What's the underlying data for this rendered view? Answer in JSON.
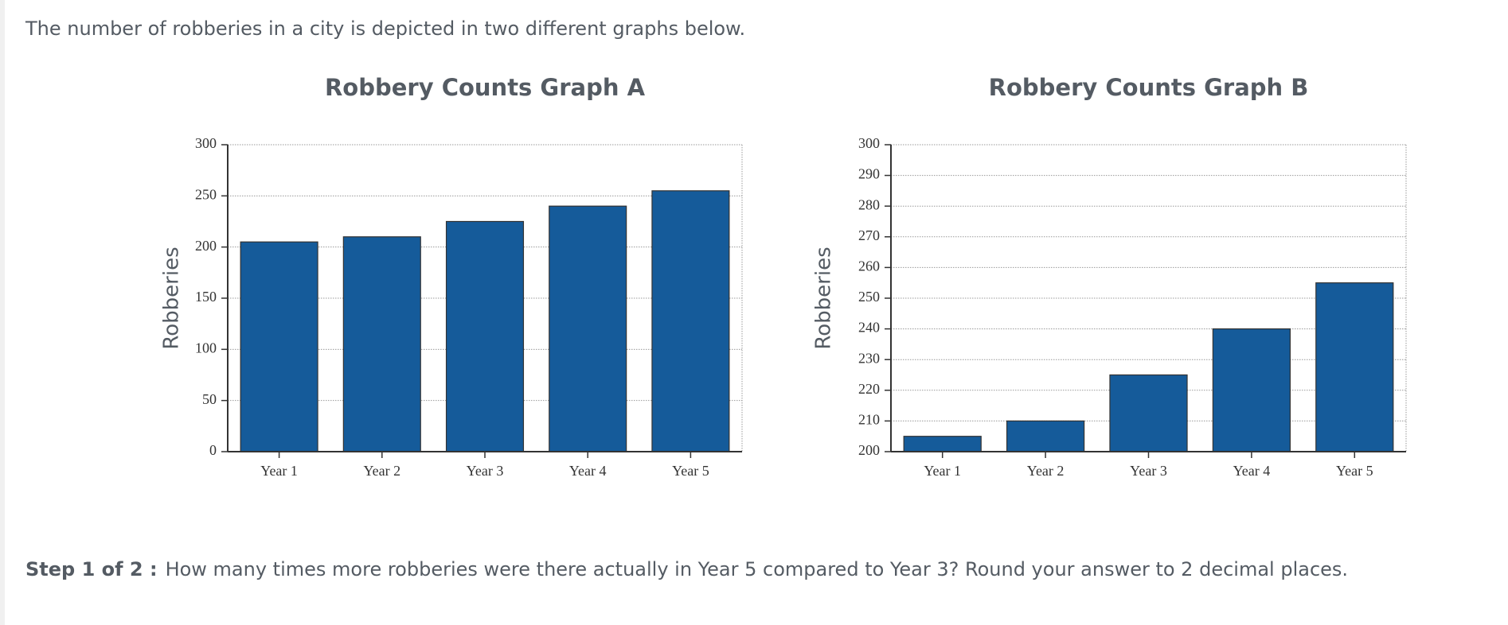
{
  "intro": "The number of robberies in a city is depicted in two different graphs below.",
  "chart_data": [
    {
      "type": "bar",
      "title": "Robbery Counts Graph A",
      "y_label": "Robberies",
      "categories": [
        "Year 1",
        "Year 2",
        "Year 3",
        "Year 4",
        "Year 5"
      ],
      "values": [
        205,
        210,
        225,
        240,
        255
      ],
      "color": "#155b9a",
      "ylim": [
        0,
        300
      ],
      "yticks": [
        0,
        50,
        100,
        150,
        200,
        250,
        300
      ],
      "grid": true
    },
    {
      "type": "bar",
      "title": "Robbery Counts Graph B",
      "y_label": "Robberies",
      "categories": [
        "Year 1",
        "Year 2",
        "Year 3",
        "Year 4",
        "Year 5"
      ],
      "values": [
        205,
        210,
        225,
        240,
        255
      ],
      "color": "#155b9a",
      "ylim": [
        200,
        300
      ],
      "yticks": [
        200,
        210,
        220,
        230,
        240,
        250,
        260,
        270,
        280,
        290,
        300
      ],
      "grid": true
    }
  ],
  "question": {
    "step": "Step 1 of 2 :",
    "text": "How many times more robberies were there actually in Year 5 compared to Year 3? Round your answer to 2 decimal places."
  }
}
